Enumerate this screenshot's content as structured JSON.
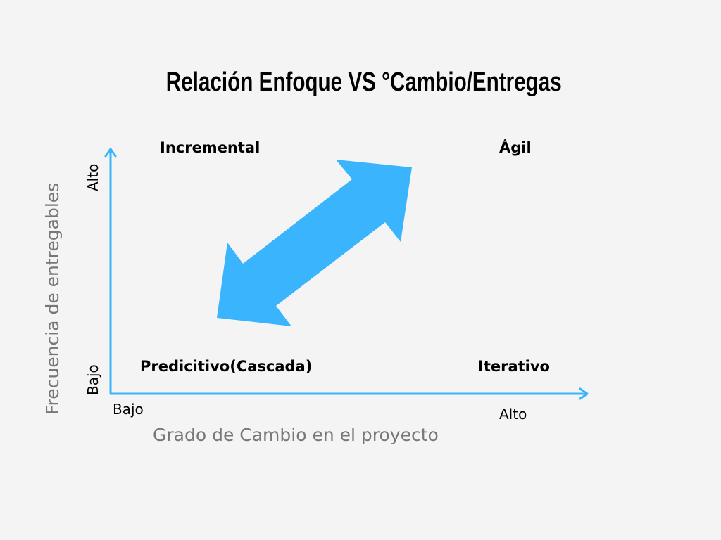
{
  "title": "Relación Enfoque VS °Cambio/Entregas",
  "quadrants": {
    "top_left": "Incremental",
    "top_right": "Ágil",
    "bottom_left": "Predicitivo(Cascada)",
    "bottom_right": "Iterativo"
  },
  "y_axis": {
    "title": "Frecuencia de entregables",
    "high": "Alto",
    "low": "Bajo"
  },
  "x_axis": {
    "title": "Grado de Cambio en el proyecto",
    "low": "Bajo",
    "high": "Alto"
  },
  "colors": {
    "background": "#f4f4f4",
    "accent": "#3ab4fd",
    "axis_title": "#777777"
  },
  "icons": {
    "axis_arrow": "arrow-icon",
    "double_arrow": "double-arrow-icon"
  }
}
